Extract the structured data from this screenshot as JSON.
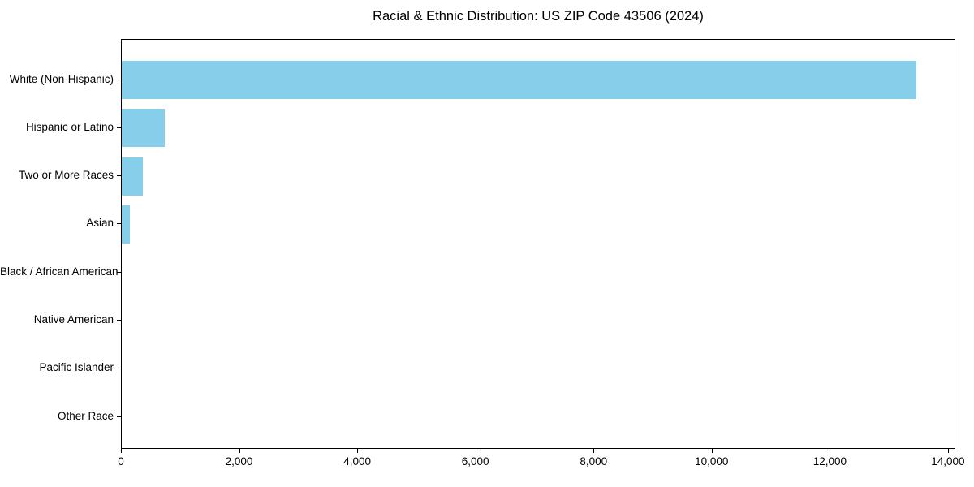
{
  "chart_data": {
    "type": "bar",
    "orientation": "horizontal",
    "title": "Racial & Ethnic Distribution: US ZIP Code 43506 (2024)",
    "categories": [
      "White (Non-Hispanic)",
      "Hispanic or Latino",
      "Two or More Races",
      "Asian",
      "Black / African American",
      "Native American",
      "Pacific Islander",
      "Other Race"
    ],
    "values": [
      13450,
      725,
      355,
      135,
      0,
      0,
      0,
      0
    ],
    "xlabel": "",
    "ylabel": "",
    "xlim": [
      0,
      14125
    ],
    "xticks": [
      0,
      2000,
      4000,
      6000,
      8000,
      10000,
      12000,
      14000
    ],
    "xtick_labels": [
      "0",
      "2,000",
      "4,000",
      "6,000",
      "8,000",
      "10,000",
      "12,000",
      "14,000"
    ],
    "bar_color": "#87CEEB",
    "grid": false,
    "legend_position": "none",
    "background_color": "#ffffff"
  }
}
